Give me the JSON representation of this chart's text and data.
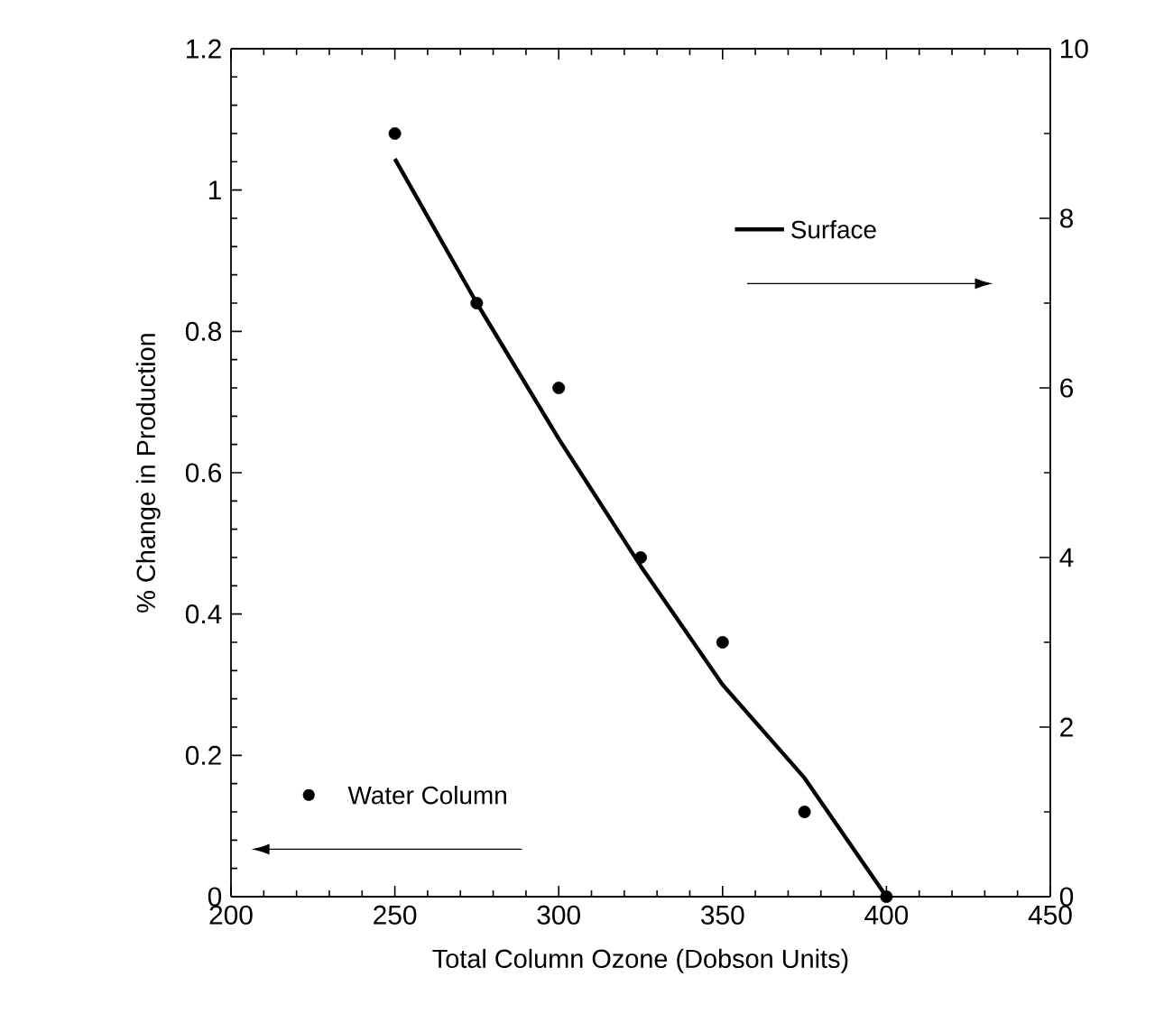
{
  "chart_data": {
    "type": "line",
    "xlabel": "Total Column Ozone (Dobson Units)",
    "ylabel": "% Change in Production",
    "x": [
      250,
      275,
      300,
      325,
      350,
      375,
      400
    ],
    "series": [
      {
        "name": "Surface",
        "axis": "y2",
        "color": "#000000",
        "marker": "none",
        "line_style": "solid",
        "values": [
          8.7,
          7.0,
          5.4,
          3.9,
          2.5,
          1.4,
          0
        ]
      },
      {
        "name": "Water Column",
        "type": "scatter",
        "color": "#000000",
        "marker": "circle",
        "values": [
          1.08,
          0.84,
          0.72,
          0.48,
          0.36,
          0.12,
          0
        ]
      }
    ],
    "xlim": [
      200,
      450
    ],
    "xticks": [
      200,
      250,
      300,
      350,
      400,
      450
    ],
    "ylim": [
      0,
      1.2
    ],
    "yticks": [
      0,
      0.2,
      0.4,
      0.6,
      0.8,
      1,
      1.2
    ],
    "y2lim": [
      0,
      10
    ],
    "y2ticks": [
      0,
      2,
      4,
      6,
      8,
      10
    ],
    "legend": "center",
    "grid": false
  }
}
